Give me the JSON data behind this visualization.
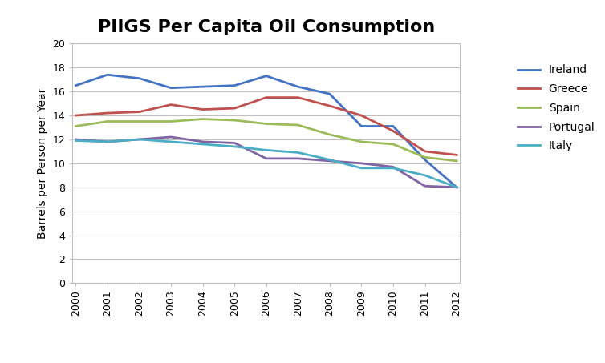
{
  "title": "PIIGS Per Capita Oil Consumption",
  "ylabel": "Barrels per Person per Year",
  "years": [
    2000,
    2001,
    2002,
    2003,
    2004,
    2005,
    2006,
    2007,
    2008,
    2009,
    2010,
    2011,
    2012
  ],
  "series": {
    "Ireland": {
      "values": [
        16.5,
        17.4,
        17.1,
        16.3,
        16.4,
        16.5,
        17.3,
        16.4,
        15.8,
        13.1,
        13.1,
        10.3,
        8.0
      ],
      "color": "#4472C4"
    },
    "Greece": {
      "values": [
        14.0,
        14.2,
        14.3,
        14.9,
        14.5,
        14.6,
        15.5,
        15.5,
        14.8,
        14.0,
        12.7,
        11.0,
        10.7
      ],
      "color": "#C0504D"
    },
    "Spain": {
      "values": [
        13.1,
        13.5,
        13.5,
        13.5,
        13.7,
        13.6,
        13.3,
        13.2,
        12.4,
        11.8,
        11.6,
        10.5,
        10.2
      ],
      "color": "#9BBB59"
    },
    "Portugal": {
      "values": [
        12.0,
        11.8,
        12.0,
        12.2,
        11.8,
        11.7,
        10.4,
        10.4,
        10.2,
        10.0,
        9.7,
        8.1,
        8.0
      ],
      "color": "#8064A2"
    },
    "Italy": {
      "values": [
        11.9,
        11.8,
        12.0,
        11.8,
        11.6,
        11.4,
        11.1,
        10.9,
        10.3,
        9.6,
        9.6,
        9.0,
        8.0
      ],
      "color": "#4BACC6"
    }
  },
  "ylim": [
    0,
    20
  ],
  "yticks": [
    0,
    2,
    4,
    6,
    8,
    10,
    12,
    14,
    16,
    18,
    20
  ],
  "background_color": "#FFFFFF",
  "plot_area_color": "#FFFFFF",
  "grid_color": "#C0C0C0",
  "spine_color": "#C0C0C0",
  "title_fontsize": 16,
  "label_fontsize": 10,
  "tick_fontsize": 9,
  "legend_fontsize": 10,
  "line_width": 2.0
}
